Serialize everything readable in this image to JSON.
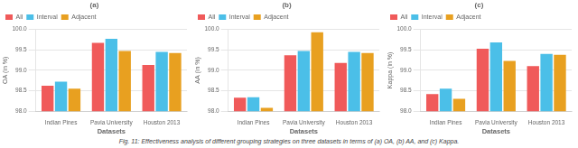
{
  "chart_data": [
    {
      "type": "bar",
      "title": "(a)",
      "xlabel": "Datasets",
      "ylabel": "OA (in %)",
      "categories": [
        "Indian Pines",
        "Pavia University",
        "Houston 2013"
      ],
      "series": [
        {
          "name": "All",
          "color": "#F05A5A",
          "values": [
            98.62,
            99.67,
            99.13
          ]
        },
        {
          "name": "Interval",
          "color": "#4BBFE8",
          "values": [
            98.72,
            99.77,
            99.45
          ]
        },
        {
          "name": "Adjacent",
          "color": "#E8A020",
          "values": [
            98.55,
            99.47,
            99.42
          ]
        }
      ],
      "ylim": [
        98.0,
        100.0
      ],
      "yticks": [
        {
          "value": 98.0,
          "label": "98.0"
        },
        {
          "value": 98.5,
          "label": "98.5"
        },
        {
          "value": 99.0,
          "label": "99.0"
        },
        {
          "value": 99.5,
          "label": "99.5"
        },
        {
          "value": 100.0,
          "label": "100.0"
        }
      ],
      "grid": true,
      "legend": "upper left"
    },
    {
      "type": "bar",
      "title": "(b)",
      "xlabel": "Datasets",
      "ylabel": "AA (in %)",
      "categories": [
        "Indian Pines",
        "Pavia University",
        "Houston 2013"
      ],
      "series": [
        {
          "name": "All",
          "color": "#F05A5A",
          "values": [
            98.33,
            99.37,
            99.18
          ]
        },
        {
          "name": "Interval",
          "color": "#4BBFE8",
          "values": [
            98.34,
            99.47,
            99.45
          ]
        },
        {
          "name": "Adjacent",
          "color": "#E8A020",
          "values": [
            98.08,
            99.93,
            99.42
          ]
        }
      ],
      "ylim": [
        98.0,
        100.0
      ],
      "yticks": [
        {
          "value": 98.0,
          "label": "98.0"
        },
        {
          "value": 98.5,
          "label": "98.5"
        },
        {
          "value": 99.0,
          "label": "99.0"
        },
        {
          "value": 99.5,
          "label": "99.5"
        },
        {
          "value": 100.0,
          "label": "100.0"
        }
      ],
      "grid": true,
      "legend": "upper left"
    },
    {
      "type": "bar",
      "title": "(c)",
      "xlabel": "Datasets",
      "ylabel": "Kappa (in %)",
      "categories": [
        "Indian Pines",
        "Pavia University",
        "Houston 2013"
      ],
      "series": [
        {
          "name": "All",
          "color": "#F05A5A",
          "values": [
            98.42,
            99.53,
            99.1
          ]
        },
        {
          "name": "Interval",
          "color": "#4BBFE8",
          "values": [
            98.55,
            99.68,
            99.4
          ]
        },
        {
          "name": "Adjacent",
          "color": "#E8A020",
          "values": [
            98.3,
            99.23,
            99.38
          ]
        }
      ],
      "ylim": [
        98.0,
        100.0
      ],
      "yticks": [
        {
          "value": 98.0,
          "label": "98.0"
        },
        {
          "value": 98.5,
          "label": "98.5"
        },
        {
          "value": 99.0,
          "label": "99.0"
        },
        {
          "value": 99.5,
          "label": "99.5"
        },
        {
          "value": 100.0,
          "label": "100.0"
        }
      ],
      "grid": true,
      "legend": "upper left"
    }
  ],
  "caption": "Fig. 11: Effectiveness analysis of different grouping strategies on three datasets in terms of (a) OA, (b) AA, and (c) Kappa."
}
